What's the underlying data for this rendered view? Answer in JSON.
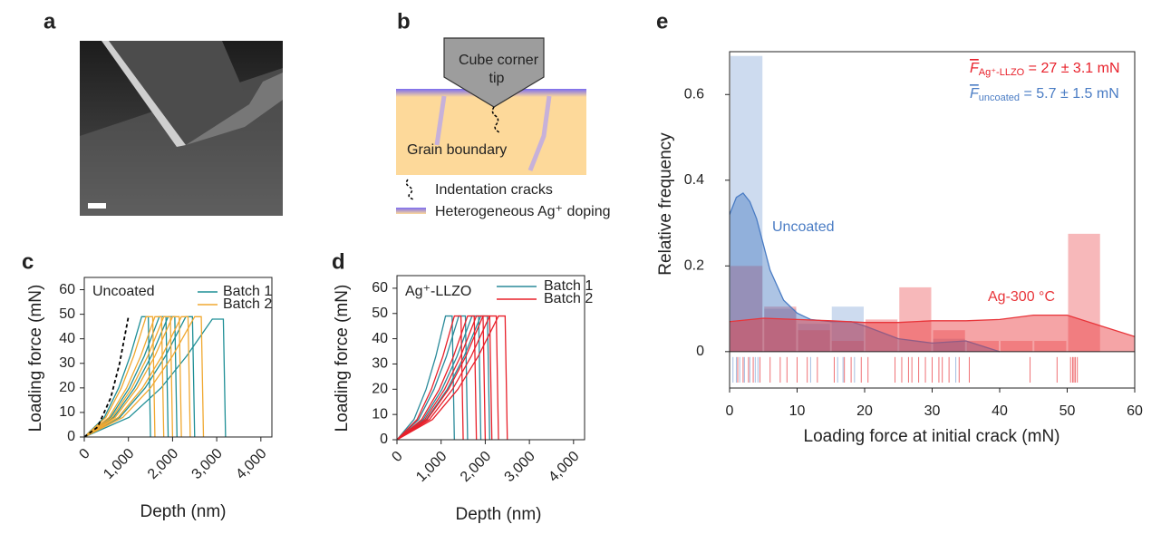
{
  "panels": {
    "a": {
      "label": "a"
    },
    "b": {
      "label": "b",
      "tip": [
        "Cube corner",
        "tip"
      ],
      "grain_boundary": "Grain boundary",
      "legend": [
        "Indentation cracks",
        "Heterogeneous Ag⁺ doping"
      ]
    }
  },
  "chart_data": [
    {
      "type": "line",
      "panel": "c",
      "annotation": "Uncoated",
      "xlabel": "Depth (nm)",
      "ylabel": "Loading force (mN)",
      "xlim": [
        0,
        4250
      ],
      "ylim": [
        0,
        65
      ],
      "xticks": [
        0,
        {
          "value": 1000,
          "label": "1,000"
        },
        {
          "value": 2000,
          "label": "2,000"
        },
        {
          "value": 3000,
          "label": "3,000"
        },
        {
          "value": 4000,
          "label": "4,000"
        }
      ],
      "yticks": [
        0,
        10,
        20,
        30,
        40,
        50,
        60
      ],
      "reference_curve": {
        "color": "#000000",
        "dashed": true,
        "x": [
          0,
          300,
          600,
          800,
          1000
        ],
        "values": [
          0,
          4,
          16,
          30,
          49
        ]
      },
      "series": [
        {
          "name": "Batch 1",
          "color": "#1f8f96",
          "curves": [
            {
              "x": [
                0,
                455,
                780,
                1040,
                1300,
                1450,
                1500
              ],
              "values": [
                0,
                8,
                20,
                33,
                49,
                49,
                0
              ]
            },
            {
              "x": [
                0,
                595,
                1020,
                1360,
                1700,
                1850,
                1900
              ],
              "values": [
                0,
                8,
                20,
                33,
                49,
                49,
                0
              ]
            },
            {
              "x": [
                0,
                665,
                1140,
                1520,
                1900,
                2050,
                2100
              ],
              "values": [
                0,
                8,
                20,
                33,
                49,
                49,
                0
              ]
            },
            {
              "x": [
                0,
                805,
                1380,
                1840,
                2300,
                2450,
                2500
              ],
              "values": [
                0,
                8,
                20,
                33,
                49,
                49,
                0
              ]
            },
            {
              "x": [
                0,
                1015,
                1740,
                2320,
                2900,
                3150,
                3200
              ],
              "values": [
                0,
                8,
                20,
                33,
                48,
                48,
                0
              ]
            }
          ]
        },
        {
          "name": "Batch 2",
          "color": "#f0a830",
          "curves": [
            {
              "x": [
                0,
                490,
                840,
                1120,
                1400,
                1550,
                1600
              ],
              "values": [
                0,
                8,
                20,
                33,
                49,
                49,
                0
              ]
            },
            {
              "x": [
                0,
                560,
                960,
                1280,
                1600,
                1750,
                1800
              ],
              "values": [
                0,
                8,
                20,
                33,
                49,
                49,
                0
              ]
            },
            {
              "x": [
                0,
                630,
                1080,
                1440,
                1800,
                1950,
                2000
              ],
              "values": [
                0,
                8,
                20,
                33,
                49,
                49,
                0
              ]
            },
            {
              "x": [
                0,
                700,
                1200,
                1600,
                2000,
                2150,
                2200
              ],
              "values": [
                0,
                8,
                20,
                33,
                49,
                49,
                0
              ]
            },
            {
              "x": [
                0,
                770,
                1320,
                1760,
                2200,
                2350,
                2400
              ],
              "values": [
                0,
                8,
                20,
                33,
                49,
                49,
                0
              ]
            },
            {
              "x": [
                0,
                875,
                1500,
                2000,
                2500,
                2650,
                2700
              ],
              "values": [
                0,
                8,
                20,
                33,
                49,
                49,
                0
              ]
            }
          ]
        }
      ]
    },
    {
      "type": "line",
      "panel": "d",
      "annotation": "Ag⁺-LLZO",
      "xlabel": "Depth (nm)",
      "ylabel": "Loading force (mN)",
      "xlim": [
        0,
        4250
      ],
      "ylim": [
        0,
        65
      ],
      "xticks": [
        0,
        {
          "value": 1000,
          "label": "1,000"
        },
        {
          "value": 2000,
          "label": "2,000"
        },
        {
          "value": 3000,
          "label": "3,000"
        },
        {
          "value": 4000,
          "label": "4,000"
        }
      ],
      "yticks": [
        0,
        10,
        20,
        30,
        40,
        50,
        60
      ],
      "series": [
        {
          "name": "Batch 1",
          "color": "#2a8a9a",
          "curves": [
            {
              "x": [
                0,
                385,
                660,
                880,
                1100,
                1250,
                1300
              ],
              "values": [
                0,
                8,
                20,
                33,
                49,
                49,
                0
              ]
            },
            {
              "x": [
                0,
                490,
                840,
                1120,
                1400,
                1550,
                1600
              ],
              "values": [
                0,
                8,
                20,
                33,
                49,
                49,
                0
              ]
            },
            {
              "x": [
                0,
                595,
                1020,
                1360,
                1700,
                1850,
                1900
              ],
              "values": [
                0,
                8,
                20,
                33,
                49,
                49,
                0
              ]
            },
            {
              "x": [
                0,
                665,
                1140,
                1520,
                1900,
                2050,
                2100
              ],
              "values": [
                0,
                8,
                20,
                33,
                49,
                49,
                0
              ]
            }
          ]
        },
        {
          "name": "Batch 2",
          "color": "#e8202a",
          "curves": [
            {
              "x": [
                0,
                455,
                780,
                1040,
                1300,
                1450,
                1500
              ],
              "values": [
                0,
                8,
                20,
                33,
                49,
                49,
                0
              ]
            },
            {
              "x": [
                0,
                560,
                960,
                1280,
                1600,
                1750,
                1800
              ],
              "values": [
                0,
                8,
                20,
                33,
                49,
                49,
                0
              ]
            },
            {
              "x": [
                0,
                630,
                1080,
                1440,
                1800,
                1950,
                2000
              ],
              "values": [
                0,
                8,
                20,
                33,
                49,
                49,
                0
              ]
            },
            {
              "x": [
                0,
                683,
                1170,
                1560,
                1950,
                2100,
                2150
              ],
              "values": [
                0,
                8,
                20,
                33,
                49,
                49,
                0
              ]
            },
            {
              "x": [
                0,
                735,
                1260,
                1680,
                2100,
                2250,
                2300
              ],
              "values": [
                0,
                8,
                20,
                33,
                49,
                49,
                0
              ]
            },
            {
              "x": [
                0,
                805,
                1380,
                1840,
                2300,
                2450,
                2500
              ],
              "values": [
                0,
                8,
                20,
                33,
                49,
                49,
                0
              ]
            }
          ]
        }
      ]
    },
    {
      "type": "histogram",
      "panel": "e",
      "xlabel": "Loading force at initial crack (mN)",
      "ylabel": "Relative frequency",
      "xlim": [
        0,
        60
      ],
      "ylim": [
        -0.085,
        0.7
      ],
      "xticks": [
        0,
        10,
        20,
        30,
        40,
        50,
        60
      ],
      "yticks": [
        0,
        0.2,
        0.4,
        0.6
      ],
      "bins": [
        0,
        5,
        10,
        15,
        20,
        25,
        30,
        35,
        40,
        45,
        50,
        55
      ],
      "series": [
        {
          "name": "Uncoated",
          "color": "#4a7cc4",
          "values": [
            0.69,
            0.1,
            0.065,
            0.105,
            0,
            0,
            0.03,
            0,
            0,
            0,
            0
          ],
          "kde": {
            "x": [
              0,
              1,
              2,
              3,
              4,
              5,
              6,
              8,
              10,
              12,
              15,
              18,
              20,
              25,
              30,
              35,
              40
            ],
            "values": [
              0.32,
              0.36,
              0.37,
              0.35,
              0.31,
              0.25,
              0.19,
              0.12,
              0.09,
              0.075,
              0.07,
              0.07,
              0.06,
              0.03,
              0.02,
              0.025,
              0
            ]
          },
          "rug": [
            0.5,
            1,
            1.5,
            2.2,
            3,
            3.8,
            4.2,
            12,
            16,
            16.8,
            18.5,
            33.5
          ]
        },
        {
          "name": "Ag-300 °C",
          "color": "#e8353a",
          "values": [
            0.2,
            0.105,
            0.05,
            0.025,
            0.075,
            0.15,
            0.05,
            0.025,
            0.025,
            0.025,
            0.275
          ],
          "kde": {
            "x": [
              0,
              5,
              10,
              15,
              20,
              25,
              30,
              35,
              40,
              45,
              50,
              55,
              60
            ],
            "values": [
              0.07,
              0.078,
              0.075,
              0.072,
              0.068,
              0.068,
              0.072,
              0.072,
              0.075,
              0.085,
              0.085,
              0.06,
              0.035
            ]
          },
          "rug": [
            1.2,
            2,
            2.8,
            3.5,
            4.5,
            6,
            7.5,
            8.5,
            10,
            11.5,
            13,
            15.5,
            17,
            18,
            19.5,
            20.5,
            24.5,
            25.5,
            26.5,
            27,
            28,
            29,
            30,
            31,
            31.5,
            32.5,
            34,
            35.5,
            44.5,
            48.5,
            50.5,
            50.8,
            51,
            51.2,
            51.5
          ]
        }
      ],
      "annotations": [
        {
          "symbol": "F",
          "subscript": "Ag⁺-LLZO",
          "text": " = 27 ± 3.1 mN",
          "color": "#e8202a"
        },
        {
          "symbol": "F",
          "subscript": "uncoated",
          "text": " = 5.7 ± 1.5 mN",
          "color": "#4a7cc4"
        }
      ]
    }
  ]
}
